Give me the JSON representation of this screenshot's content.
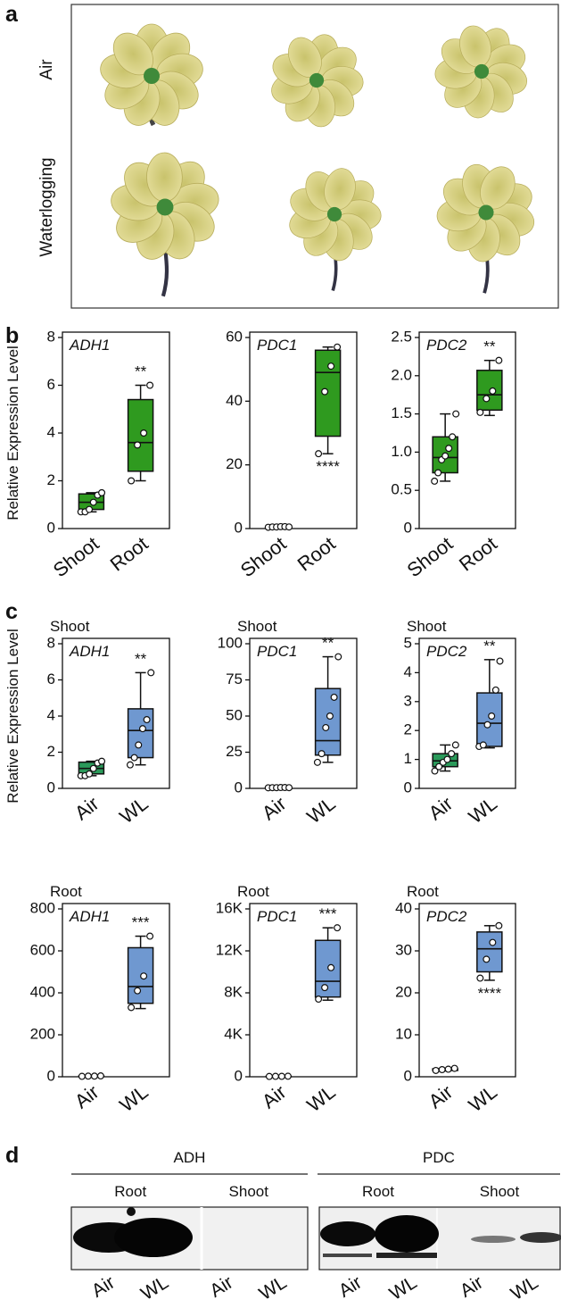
{
  "panel_labels": [
    "a",
    "b",
    "c",
    "d"
  ],
  "panel_a_rows": [
    "Air",
    "Waterlogging"
  ],
  "chart_data": [
    {
      "type": "box",
      "title": "ADH1",
      "y_label": "Relative Expression Level",
      "categories": [
        "Shoot",
        "Root"
      ],
      "ylim": [
        0,
        8
      ],
      "yticks": [
        0,
        2,
        4,
        6,
        8
      ],
      "annotation": "**",
      "annotation_placement": "above",
      "boxes": [
        {
          "color": "#2f9a1f",
          "min": 0.7,
          "q1": 0.8,
          "median": 1.1,
          "q3": 1.45,
          "max": 1.5,
          "points": [
            0.7,
            0.7,
            0.8,
            1.1,
            1.4,
            1.5
          ]
        },
        {
          "color": "#2f9a1f",
          "min": 2.0,
          "q1": 2.4,
          "median": 3.6,
          "q3": 5.4,
          "max": 6.0,
          "points": [
            2.0,
            3.5,
            4.0,
            6.0
          ]
        }
      ]
    },
    {
      "type": "box",
      "title": "PDC1",
      "categories": [
        "Shoot",
        "Root"
      ],
      "ylim": [
        0,
        60
      ],
      "yticks": [
        0,
        20,
        40,
        60
      ],
      "annotation": "****",
      "annotation_placement": "below",
      "boxes": [
        {
          "color": "#2f9a1f",
          "min": 0.3,
          "q1": 0.4,
          "median": 0.5,
          "q3": 0.6,
          "max": 0.7,
          "points": [
            0.4,
            0.5,
            0.5,
            0.6,
            0.6,
            0.5
          ]
        },
        {
          "color": "#2f9a1f",
          "min": 23.5,
          "q1": 29,
          "median": 49,
          "q3": 56,
          "max": 57,
          "points": [
            23.5,
            43,
            51,
            57
          ]
        }
      ]
    },
    {
      "type": "box",
      "title": "PDC2",
      "categories": [
        "Shoot",
        "Root"
      ],
      "ylim": [
        0,
        2.5
      ],
      "yticks": [
        0,
        0.5,
        {
          "value": 1,
          "label": "1.0"
        },
        1.5,
        {
          "value": 2,
          "label": "2.0"
        },
        2.5
      ],
      "annotation": "**",
      "annotation_placement": "above",
      "boxes": [
        {
          "color": "#2f9a1f",
          "min": 0.62,
          "q1": 0.73,
          "median": 0.93,
          "q3": 1.2,
          "max": 1.5,
          "points": [
            0.62,
            0.73,
            0.9,
            0.95,
            1.05,
            1.2,
            1.5
          ]
        },
        {
          "color": "#2f9a1f",
          "min": 1.48,
          "q1": 1.55,
          "median": 1.75,
          "q3": 2.07,
          "max": 2.2,
          "points": [
            1.52,
            1.7,
            1.8,
            2.2
          ]
        }
      ]
    },
    {
      "type": "box",
      "title": "ADH1",
      "subtitle": "Shoot",
      "y_label": "Relative Expression Level",
      "categories": [
        "Air",
        "WL"
      ],
      "ylim": [
        0,
        8
      ],
      "yticks": [
        0,
        2,
        4,
        6,
        8
      ],
      "annotation": "**",
      "annotation_placement": "above",
      "boxes": [
        {
          "color": "#2a9a5a",
          "min": 0.7,
          "q1": 0.8,
          "median": 1.1,
          "q3": 1.45,
          "max": 1.5,
          "points": [
            0.7,
            0.7,
            0.8,
            1.1,
            1.4,
            1.5
          ]
        },
        {
          "color": "#6f98d0",
          "min": 1.3,
          "q1": 1.7,
          "median": 3.2,
          "q3": 4.4,
          "max": 6.4,
          "points": [
            1.3,
            1.7,
            2.4,
            3.3,
            3.8,
            6.4
          ]
        }
      ]
    },
    {
      "type": "box",
      "title": "PDC1",
      "subtitle": "Shoot",
      "categories": [
        "Air",
        "WL"
      ],
      "ylim": [
        0,
        100
      ],
      "yticks": [
        0,
        25,
        50,
        75,
        100
      ],
      "annotation": "**",
      "annotation_placement": "above",
      "boxes": [
        {
          "color": "#2a9a5a",
          "min": 0.3,
          "q1": 0.4,
          "median": 0.5,
          "q3": 0.6,
          "max": 0.7,
          "points": [
            0.4,
            0.5,
            0.5,
            0.6,
            0.6,
            0.5
          ]
        },
        {
          "color": "#6f98d0",
          "min": 18,
          "q1": 23,
          "median": 33,
          "q3": 69,
          "max": 91,
          "points": [
            18,
            24,
            42,
            50,
            63,
            91
          ]
        }
      ]
    },
    {
      "type": "box",
      "title": "PDC2",
      "subtitle": "Shoot",
      "categories": [
        "Air",
        "WL"
      ],
      "ylim": [
        0,
        5
      ],
      "yticks": [
        0,
        1,
        2,
        3,
        4,
        5
      ],
      "annotation": "**",
      "annotation_placement": "above",
      "boxes": [
        {
          "color": "#2a9a5a",
          "min": 0.6,
          "q1": 0.75,
          "median": 0.95,
          "q3": 1.2,
          "max": 1.5,
          "points": [
            0.6,
            0.75,
            0.9,
            1.0,
            1.2,
            1.5
          ]
        },
        {
          "color": "#6f98d0",
          "min": 1.4,
          "q1": 1.45,
          "median": 2.25,
          "q3": 3.3,
          "max": 4.45,
          "points": [
            1.45,
            1.5,
            2.2,
            2.5,
            3.4,
            4.4
          ]
        }
      ]
    },
    {
      "type": "box",
      "title": "ADH1",
      "subtitle": "Root",
      "categories": [
        "Air",
        "WL"
      ],
      "ylim": [
        0,
        800
      ],
      "yticks": [
        0,
        200,
        400,
        600,
        800
      ],
      "annotation": "***",
      "annotation_placement": "above",
      "boxes": [
        {
          "color": "#6f98d0",
          "min": 1,
          "q1": 2,
          "median": 3,
          "q3": 4,
          "max": 5,
          "points": [
            2,
            3,
            3,
            4
          ]
        },
        {
          "color": "#6f98d0",
          "min": 325,
          "q1": 350,
          "median": 430,
          "q3": 615,
          "max": 670,
          "points": [
            330,
            410,
            480,
            670
          ]
        }
      ]
    },
    {
      "type": "box",
      "title": "PDC1",
      "subtitle": "Root",
      "categories": [
        "Air",
        "WL"
      ],
      "ylim": [
        0,
        16000
      ],
      "yticks": [
        0,
        {
          "value": 4000,
          "label": "4K"
        },
        {
          "value": 8000,
          "label": "8K"
        },
        {
          "value": 12000,
          "label": "12K"
        },
        {
          "value": 16000,
          "label": "16K"
        }
      ],
      "annotation": "***",
      "annotation_placement": "above",
      "boxes": [
        {
          "color": "#6f98d0",
          "min": 20,
          "q1": 30,
          "median": 40,
          "q3": 50,
          "max": 60,
          "points": [
            30,
            40,
            40,
            50
          ]
        },
        {
          "color": "#6f98d0",
          "min": 7300,
          "q1": 7600,
          "median": 9100,
          "q3": 13000,
          "max": 14200,
          "points": [
            7400,
            8500,
            10400,
            14200
          ]
        }
      ]
    },
    {
      "type": "box",
      "title": "PDC2",
      "subtitle": "Root",
      "categories": [
        "Air",
        "WL"
      ],
      "ylim": [
        0,
        40
      ],
      "yticks": [
        0,
        10,
        20,
        30,
        40
      ],
      "annotation": "****",
      "annotation_placement": "below",
      "boxes": [
        {
          "color": "#6f98d0",
          "min": 1.4,
          "q1": 1.5,
          "median": 1.7,
          "q3": 1.9,
          "max": 2.0,
          "points": [
            1.5,
            1.7,
            1.8,
            2.0
          ]
        },
        {
          "color": "#6f98d0",
          "min": 23,
          "q1": 25,
          "median": 30.5,
          "q3": 34.5,
          "max": 36,
          "points": [
            23.5,
            28,
            32,
            36
          ]
        }
      ]
    }
  ],
  "blot": {
    "groups": [
      {
        "label": "ADH",
        "tissues": [
          {
            "label": "Root",
            "lanes": [
              "Air",
              "WL"
            ]
          },
          {
            "label": "Shoot",
            "lanes": [
              "Air",
              "WL"
            ]
          }
        ]
      },
      {
        "label": "PDC",
        "tissues": [
          {
            "label": "Root",
            "lanes": [
              "Air",
              "WL"
            ]
          },
          {
            "label": "Shoot",
            "lanes": [
              "Air",
              "WL"
            ]
          }
        ]
      }
    ]
  }
}
